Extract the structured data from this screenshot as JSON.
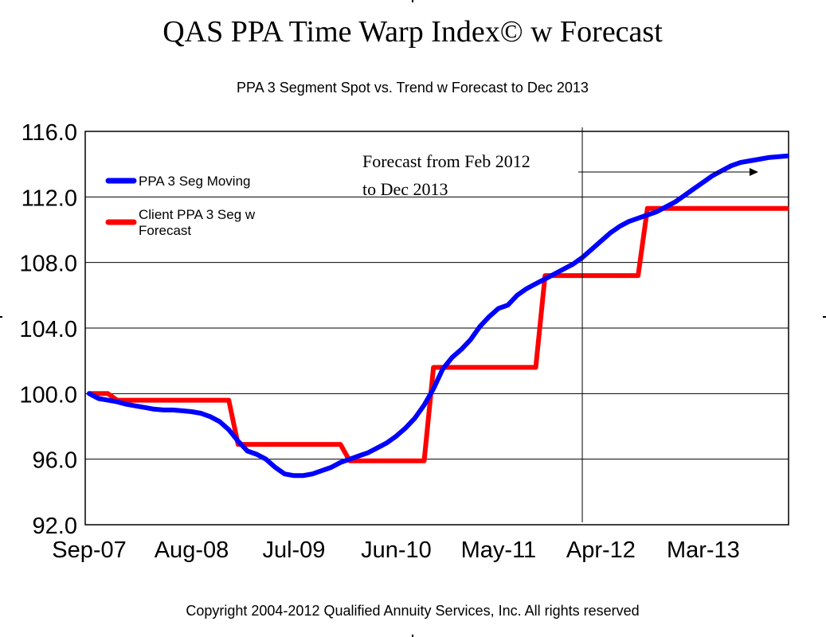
{
  "chart_data": {
    "type": "line",
    "title": "QAS PPA Time Warp Index© w Forecast",
    "subtitle": "PPA 3 Segment Spot vs. Trend w Forecast to Dec 2013",
    "footer": "Copyright 2004-2012 Qualified Annuity Services, Inc.  All rights reserved",
    "annotation": {
      "line1": "Forecast from Feb 2012",
      "line2": "to Dec 2013",
      "marker_x": "Feb-12"
    },
    "ylim": [
      92.0,
      116.0
    ],
    "y_ticks": [
      "92.0",
      "96.0",
      "100.0",
      "104.0",
      "108.0",
      "112.0",
      "116.0"
    ],
    "x_ticks": [
      "Sep-07",
      "Aug-08",
      "Jul-09",
      "Jun-10",
      "May-11",
      "Apr-12",
      "Mar-13"
    ],
    "grid": true,
    "legend_position": "top-left",
    "colors": {
      "series_moving": "#0000ff",
      "series_client": "#ff0000"
    },
    "series": [
      {
        "name": "PPA 3 Seg Moving",
        "points": [
          [
            "Sep-07",
            100.0
          ],
          [
            "Oct-07",
            99.7
          ],
          [
            "Nov-07",
            99.6
          ],
          [
            "Dec-07",
            99.5
          ],
          [
            "Jan-08",
            99.35
          ],
          [
            "Feb-08",
            99.25
          ],
          [
            "Mar-08",
            99.15
          ],
          [
            "Apr-08",
            99.05
          ],
          [
            "May-08",
            99.0
          ],
          [
            "Jun-08",
            99.0
          ],
          [
            "Jul-08",
            98.95
          ],
          [
            "Aug-08",
            98.9
          ],
          [
            "Sep-08",
            98.8
          ],
          [
            "Oct-08",
            98.6
          ],
          [
            "Nov-08",
            98.3
          ],
          [
            "Dec-08",
            97.8
          ],
          [
            "Jan-09",
            97.1
          ],
          [
            "Feb-09",
            96.5
          ],
          [
            "Mar-09",
            96.3
          ],
          [
            "Apr-09",
            96.0
          ],
          [
            "May-09",
            95.5
          ],
          [
            "Jun-09",
            95.1
          ],
          [
            "Jul-09",
            95.0
          ],
          [
            "Aug-09",
            95.0
          ],
          [
            "Sep-09",
            95.1
          ],
          [
            "Oct-09",
            95.3
          ],
          [
            "Nov-09",
            95.5
          ],
          [
            "Dec-09",
            95.8
          ],
          [
            "Jan-10",
            96.0
          ],
          [
            "Feb-10",
            96.2
          ],
          [
            "Mar-10",
            96.4
          ],
          [
            "Apr-10",
            96.7
          ],
          [
            "May-10",
            97.0
          ],
          [
            "Jun-10",
            97.4
          ],
          [
            "Jul-10",
            97.9
          ],
          [
            "Aug-10",
            98.5
          ],
          [
            "Sep-10",
            99.3
          ],
          [
            "Oct-10",
            100.3
          ],
          [
            "Nov-10",
            101.5
          ],
          [
            "Dec-10",
            102.2
          ],
          [
            "Jan-11",
            102.7
          ],
          [
            "Feb-11",
            103.3
          ],
          [
            "Mar-11",
            104.1
          ],
          [
            "Apr-11",
            104.7
          ],
          [
            "May-11",
            105.2
          ],
          [
            "Jun-11",
            105.4
          ],
          [
            "Jul-11",
            106.0
          ],
          [
            "Aug-11",
            106.4
          ],
          [
            "Sep-11",
            106.7
          ],
          [
            "Oct-11",
            107.0
          ],
          [
            "Nov-11",
            107.3
          ],
          [
            "Dec-11",
            107.6
          ],
          [
            "Jan-12",
            107.9
          ],
          [
            "Feb-12",
            108.3
          ],
          [
            "Mar-12",
            108.8
          ],
          [
            "Apr-12",
            109.3
          ],
          [
            "May-12",
            109.8
          ],
          [
            "Jun-12",
            110.2
          ],
          [
            "Jul-12",
            110.5
          ],
          [
            "Aug-12",
            110.7
          ],
          [
            "Sep-12",
            110.9
          ],
          [
            "Oct-12",
            111.1
          ],
          [
            "Nov-12",
            111.4
          ],
          [
            "Dec-12",
            111.7
          ],
          [
            "Jan-13",
            112.1
          ],
          [
            "Feb-13",
            112.5
          ],
          [
            "Mar-13",
            112.9
          ],
          [
            "Apr-13",
            113.3
          ],
          [
            "May-13",
            113.6
          ],
          [
            "Jun-13",
            113.9
          ],
          [
            "Jul-13",
            114.1
          ],
          [
            "Aug-13",
            114.2
          ],
          [
            "Sep-13",
            114.3
          ],
          [
            "Oct-13",
            114.4
          ],
          [
            "Nov-13",
            114.45
          ],
          [
            "Dec-13",
            114.5
          ]
        ]
      },
      {
        "name": "Client PPA 3 Seg w Forecast",
        "points": [
          [
            "Sep-07",
            100.0
          ],
          [
            "Nov-07",
            100.0
          ],
          [
            "Dec-07",
            99.6
          ],
          [
            "Dec-08",
            99.6
          ],
          [
            "Jan-09",
            96.9
          ],
          [
            "Dec-09",
            96.9
          ],
          [
            "Jan-10",
            95.9
          ],
          [
            "Sep-10",
            95.9
          ],
          [
            "Oct-10",
            101.6
          ],
          [
            "Sep-11",
            101.6
          ],
          [
            "Oct-11",
            107.2
          ],
          [
            "Aug-12",
            107.2
          ],
          [
            "Sep-12",
            111.3
          ],
          [
            "Dec-13",
            111.3
          ]
        ]
      }
    ]
  }
}
